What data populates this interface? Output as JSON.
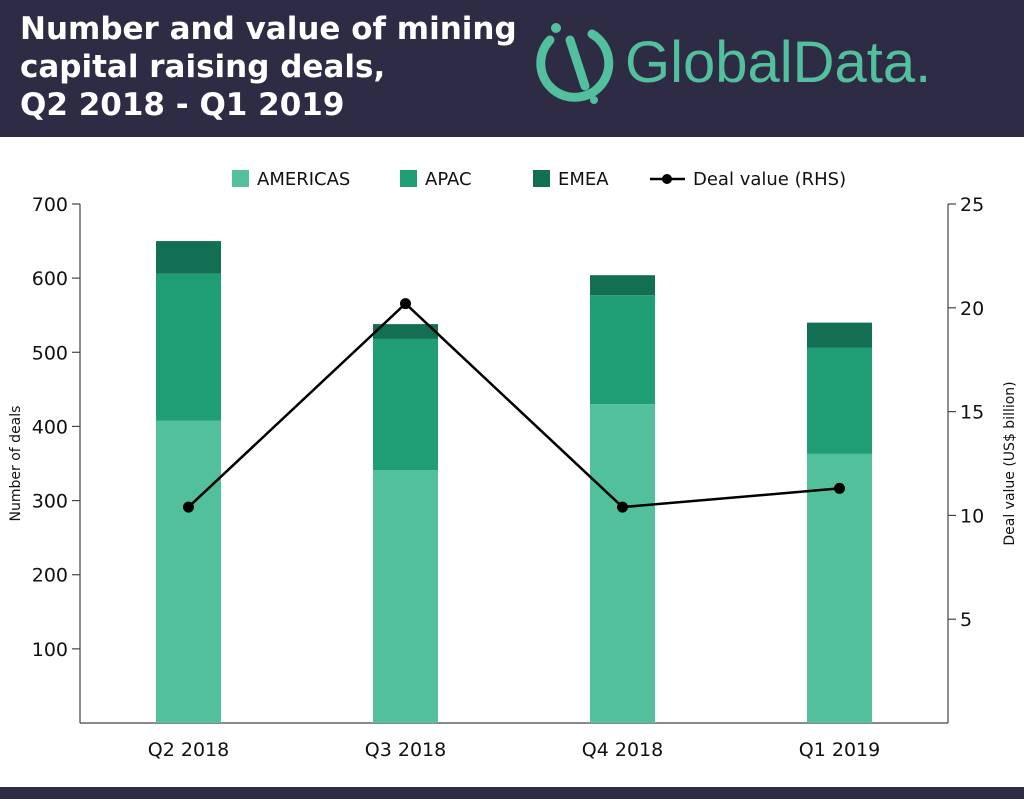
{
  "header": {
    "title_lines": [
      "Number and value of mining",
      "capital raising deals,",
      "Q2 2018 - Q1 2019"
    ],
    "logo_text": "GlobalData."
  },
  "colors": {
    "header_bg": "#2e2c45",
    "americas": "#52c09c",
    "apac": "#1f9e76",
    "emea": "#136f54",
    "line": "#000000",
    "logo": "#52c09c"
  },
  "chart_data": {
    "type": "bar",
    "stacked": true,
    "categories": [
      "Q2 2018",
      "Q3 2018",
      "Q4 2018",
      "Q1 2019"
    ],
    "series": [
      {
        "name": "AMERICAS",
        "values": [
          408,
          341,
          430,
          363
        ]
      },
      {
        "name": "APAC",
        "values": [
          198,
          177,
          147,
          143
        ]
      },
      {
        "name": "EMEA",
        "values": [
          44,
          20,
          27,
          34
        ]
      }
    ],
    "line_series": {
      "name": "Deal value (RHS)",
      "values": [
        10.4,
        20.2,
        10.4,
        11.3
      ],
      "axis": "right"
    },
    "ylabel": "Number of deals",
    "y2label": "Deal value (US$ billion)",
    "ylim": [
      0,
      700
    ],
    "y2lim": [
      0,
      25
    ],
    "yticks": [
      100,
      200,
      300,
      400,
      500,
      600,
      700
    ],
    "y2ticks": [
      5,
      10,
      15,
      20,
      25
    ],
    "legend_position": "top",
    "grid": false
  }
}
